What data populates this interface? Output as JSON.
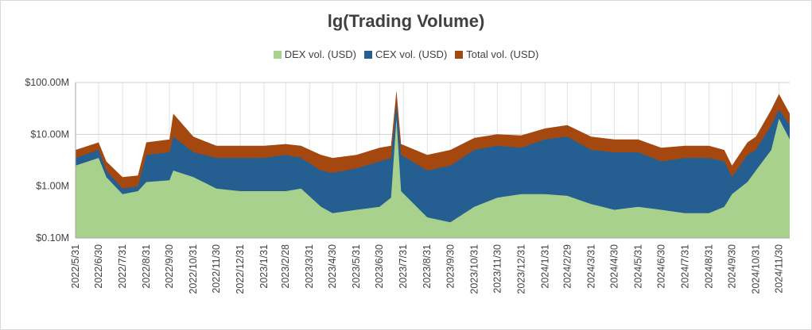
{
  "chart_data": {
    "type": "area",
    "title": "lg(Trading Volume)",
    "y_scale": "log",
    "ylim": [
      100000,
      100000000
    ],
    "y_ticks": [
      {
        "value": 100000,
        "label": "$0.10M"
      },
      {
        "value": 1000000,
        "label": "$1.00M"
      },
      {
        "value": 10000000,
        "label": "$10.00M"
      },
      {
        "value": 100000000,
        "label": "$100.00M"
      }
    ],
    "xlim": [
      "2022-05-31",
      "2024-12-14"
    ],
    "x_ticks": [
      "2022/5/31",
      "2022/6/30",
      "2022/7/31",
      "2022/8/31",
      "2022/9/30",
      "2022/10/31",
      "2022/11/30",
      "2022/12/31",
      "2023/1/31",
      "2023/2/28",
      "2023/3/31",
      "2023/4/30",
      "2023/5/31",
      "2023/6/30",
      "2023/7/31",
      "2023/8/31",
      "2023/9/30",
      "2023/10/31",
      "2023/11/30",
      "2023/12/31",
      "2024/1/31",
      "2024/2/29",
      "2024/3/31",
      "2024/4/30",
      "2024/5/31",
      "2024/6/30",
      "2024/7/31",
      "2024/8/31",
      "2024/9/30",
      "2024/10/31",
      "2024/11/30"
    ],
    "grid": true,
    "legend_position": "top",
    "series": [
      {
        "name": "DEX vol. (USD)",
        "color": "#a9d18e",
        "values": [
          [
            "2022-05-31",
            2500000
          ],
          [
            "2022-06-30",
            3500000
          ],
          [
            "2022-07-10",
            1500000
          ],
          [
            "2022-07-31",
            700000
          ],
          [
            "2022-08-20",
            800000
          ],
          [
            "2022-08-31",
            1200000
          ],
          [
            "2022-09-30",
            1300000
          ],
          [
            "2022-10-05",
            2000000
          ],
          [
            "2022-10-31",
            1500000
          ],
          [
            "2022-11-30",
            900000
          ],
          [
            "2022-12-31",
            800000
          ],
          [
            "2023-01-31",
            800000
          ],
          [
            "2023-02-28",
            800000
          ],
          [
            "2023-03-20",
            900000
          ],
          [
            "2023-04-15",
            400000
          ],
          [
            "2023-04-30",
            300000
          ],
          [
            "2023-05-31",
            350000
          ],
          [
            "2023-06-30",
            400000
          ],
          [
            "2023-07-15",
            600000
          ],
          [
            "2023-07-22",
            20000000
          ],
          [
            "2023-07-28",
            800000
          ],
          [
            "2023-08-31",
            250000
          ],
          [
            "2023-09-30",
            200000
          ],
          [
            "2023-10-31",
            400000
          ],
          [
            "2023-11-30",
            600000
          ],
          [
            "2023-12-31",
            700000
          ],
          [
            "2024-01-31",
            700000
          ],
          [
            "2024-02-29",
            650000
          ],
          [
            "2024-03-31",
            450000
          ],
          [
            "2024-04-30",
            350000
          ],
          [
            "2024-05-31",
            400000
          ],
          [
            "2024-06-30",
            350000
          ],
          [
            "2024-07-31",
            300000
          ],
          [
            "2024-08-31",
            300000
          ],
          [
            "2024-09-20",
            400000
          ],
          [
            "2024-09-30",
            700000
          ],
          [
            "2024-10-20",
            1200000
          ],
          [
            "2024-10-31",
            2000000
          ],
          [
            "2024-11-20",
            5000000
          ],
          [
            "2024-11-30",
            20000000
          ],
          [
            "2024-12-14",
            8000000
          ]
        ]
      },
      {
        "name": "CEX vol. (USD)",
        "color": "#255e91",
        "values": [
          [
            "2022-05-31",
            3500000
          ],
          [
            "2022-06-30",
            5000000
          ],
          [
            "2022-07-10",
            2000000
          ],
          [
            "2022-07-31",
            900000
          ],
          [
            "2022-08-20",
            1000000
          ],
          [
            "2022-08-31",
            4000000
          ],
          [
            "2022-09-30",
            4500000
          ],
          [
            "2022-10-05",
            9000000
          ],
          [
            "2022-10-31",
            4500000
          ],
          [
            "2022-11-30",
            3500000
          ],
          [
            "2022-12-31",
            3500000
          ],
          [
            "2023-01-31",
            3500000
          ],
          [
            "2023-02-28",
            4000000
          ],
          [
            "2023-03-20",
            3500000
          ],
          [
            "2023-04-15",
            2000000
          ],
          [
            "2023-04-30",
            1800000
          ],
          [
            "2023-05-31",
            2200000
          ],
          [
            "2023-06-30",
            3000000
          ],
          [
            "2023-07-15",
            3500000
          ],
          [
            "2023-07-22",
            40000000
          ],
          [
            "2023-07-28",
            4000000
          ],
          [
            "2023-08-31",
            2000000
          ],
          [
            "2023-09-30",
            2500000
          ],
          [
            "2023-10-31",
            5000000
          ],
          [
            "2023-11-30",
            6000000
          ],
          [
            "2023-12-31",
            5500000
          ],
          [
            "2024-01-31",
            8000000
          ],
          [
            "2024-02-29",
            9000000
          ],
          [
            "2024-03-31",
            5000000
          ],
          [
            "2024-04-30",
            4500000
          ],
          [
            "2024-05-31",
            4500000
          ],
          [
            "2024-06-30",
            3000000
          ],
          [
            "2024-07-31",
            3500000
          ],
          [
            "2024-08-31",
            3500000
          ],
          [
            "2024-09-20",
            3000000
          ],
          [
            "2024-09-30",
            1500000
          ],
          [
            "2024-10-20",
            4000000
          ],
          [
            "2024-10-31",
            5000000
          ],
          [
            "2024-11-20",
            15000000
          ],
          [
            "2024-11-30",
            30000000
          ],
          [
            "2024-12-14",
            15000000
          ]
        ]
      },
      {
        "name": "Total vol. (USD)",
        "color": "#a5480f",
        "values": [
          [
            "2022-05-31",
            5000000
          ],
          [
            "2022-06-30",
            7000000
          ],
          [
            "2022-07-10",
            3000000
          ],
          [
            "2022-07-31",
            1500000
          ],
          [
            "2022-08-20",
            1600000
          ],
          [
            "2022-08-31",
            7000000
          ],
          [
            "2022-09-30",
            8000000
          ],
          [
            "2022-10-05",
            25000000
          ],
          [
            "2022-10-31",
            9000000
          ],
          [
            "2022-11-30",
            6000000
          ],
          [
            "2022-12-31",
            6000000
          ],
          [
            "2023-01-31",
            6000000
          ],
          [
            "2023-02-28",
            6500000
          ],
          [
            "2023-03-20",
            6000000
          ],
          [
            "2023-04-15",
            4000000
          ],
          [
            "2023-04-30",
            3500000
          ],
          [
            "2023-05-31",
            4000000
          ],
          [
            "2023-06-30",
            5500000
          ],
          [
            "2023-07-15",
            6000000
          ],
          [
            "2023-07-22",
            70000000
          ],
          [
            "2023-07-28",
            6500000
          ],
          [
            "2023-08-31",
            4000000
          ],
          [
            "2023-09-30",
            5000000
          ],
          [
            "2023-10-31",
            8500000
          ],
          [
            "2023-11-30",
            10000000
          ],
          [
            "2023-12-31",
            9500000
          ],
          [
            "2024-01-31",
            13000000
          ],
          [
            "2024-02-29",
            15000000
          ],
          [
            "2024-03-31",
            9000000
          ],
          [
            "2024-04-30",
            8000000
          ],
          [
            "2024-05-31",
            8000000
          ],
          [
            "2024-06-30",
            5500000
          ],
          [
            "2024-07-31",
            6000000
          ],
          [
            "2024-08-31",
            6000000
          ],
          [
            "2024-09-20",
            5000000
          ],
          [
            "2024-09-30",
            2500000
          ],
          [
            "2024-10-20",
            7000000
          ],
          [
            "2024-10-31",
            9000000
          ],
          [
            "2024-11-20",
            30000000
          ],
          [
            "2024-11-30",
            60000000
          ],
          [
            "2024-12-14",
            25000000
          ]
        ]
      }
    ]
  }
}
